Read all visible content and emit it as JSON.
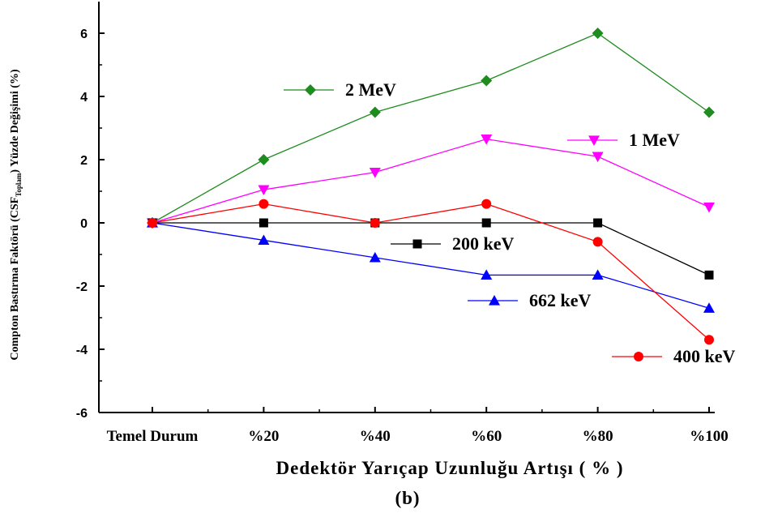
{
  "chart_data": {
    "type": "line",
    "caption": "(b)",
    "x_label": "Dedektör Yarıçap Uzunluğu  Artışı ( % )",
    "y_label": {
      "before": "Compton Bastırma Faktörü (CSF",
      "sub": "Toplam",
      "after": ") Yüzde Değişimi (%)"
    },
    "categories": [
      "Temel Durum",
      "%20",
      "%40",
      "%60",
      "%80",
      "%100"
    ],
    "ylim": [
      -6,
      7
    ],
    "yticks": [
      -6,
      -4,
      -2,
      0,
      2,
      4,
      6
    ],
    "series": [
      {
        "name": "2 MeV",
        "color": "#1e8c1e",
        "marker": "diamond",
        "values": [
          0,
          2,
          3.5,
          4.5,
          6,
          3.5
        ]
      },
      {
        "name": "1 MeV",
        "color": "#ff00ff",
        "marker": "triangle-down",
        "values": [
          0,
          1.05,
          1.6,
          2.65,
          2.1,
          0.5
        ]
      },
      {
        "name": "200 keV",
        "color": "#000000",
        "marker": "square",
        "values": [
          0,
          0,
          0,
          0,
          0,
          -1.65
        ]
      },
      {
        "name": "662 keV",
        "color": "#0000ff",
        "marker": "triangle-up",
        "values": [
          0,
          -0.55,
          -1.1,
          -1.65,
          -1.65,
          -2.7
        ]
      },
      {
        "name": "400 keV",
        "color": "#ff0000",
        "marker": "circle",
        "values": [
          0,
          0.6,
          0,
          0.6,
          -0.6,
          -3.7
        ]
      }
    ]
  }
}
